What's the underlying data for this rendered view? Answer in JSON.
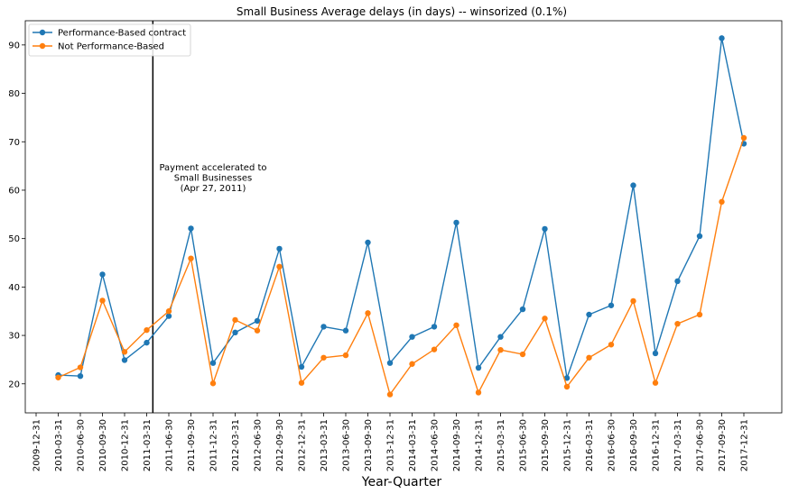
{
  "chart_data": {
    "type": "line",
    "title": "Small Business Average delays (in days) -- winsorized (0.1%)",
    "xlabel": "Year-Quarter",
    "ylabel": "",
    "ylim": [
      14,
      95
    ],
    "y_ticks": [
      20,
      30,
      40,
      50,
      60,
      70,
      80,
      90
    ],
    "categories": [
      "2009-12-31",
      "2010-03-31",
      "2010-06-30",
      "2010-09-30",
      "2010-12-31",
      "2011-03-31",
      "2011-06-30",
      "2011-09-30",
      "2011-12-31",
      "2012-03-31",
      "2012-06-30",
      "2012-09-30",
      "2012-12-31",
      "2013-03-31",
      "2013-06-30",
      "2013-09-30",
      "2013-12-31",
      "2014-03-31",
      "2014-06-30",
      "2014-09-30",
      "2014-12-31",
      "2015-03-31",
      "2015-06-30",
      "2015-09-30",
      "2015-12-31",
      "2016-03-31",
      "2016-06-30",
      "2016-09-30",
      "2016-12-31",
      "2017-03-31",
      "2017-06-30",
      "2017-09-30",
      "2017-12-31"
    ],
    "series": [
      {
        "name": "Performance-Based contract",
        "color": "#1f77b4",
        "values": [
          null,
          21.8,
          21.6,
          42.6,
          24.9,
          28.5,
          34.0,
          52.1,
          24.3,
          30.6,
          33.0,
          47.9,
          23.5,
          31.8,
          31.0,
          49.2,
          24.3,
          29.7,
          31.8,
          53.3,
          23.3,
          29.7,
          35.4,
          52.0,
          21.2,
          34.3,
          36.2,
          61.0,
          26.3,
          41.2,
          50.5,
          91.4,
          69.6
        ]
      },
      {
        "name": "Not Performance-Based",
        "color": "#ff7f0e",
        "values": [
          null,
          21.3,
          23.4,
          37.2,
          26.6,
          31.1,
          35.0,
          45.9,
          20.1,
          33.2,
          31.0,
          44.2,
          20.2,
          25.4,
          25.9,
          34.6,
          17.8,
          24.1,
          27.1,
          32.1,
          18.2,
          27.0,
          26.1,
          33.5,
          19.4,
          25.4,
          28.1,
          37.1,
          20.2,
          32.4,
          34.3,
          57.6,
          70.8
        ]
      }
    ],
    "vline": {
      "x": "2011-04-27"
    },
    "annotation": {
      "lines": [
        "Payment accelerated to",
        "Small Businesses",
        "(Apr 27, 2011)"
      ]
    },
    "legend_position": "top-left",
    "grid": false
  }
}
